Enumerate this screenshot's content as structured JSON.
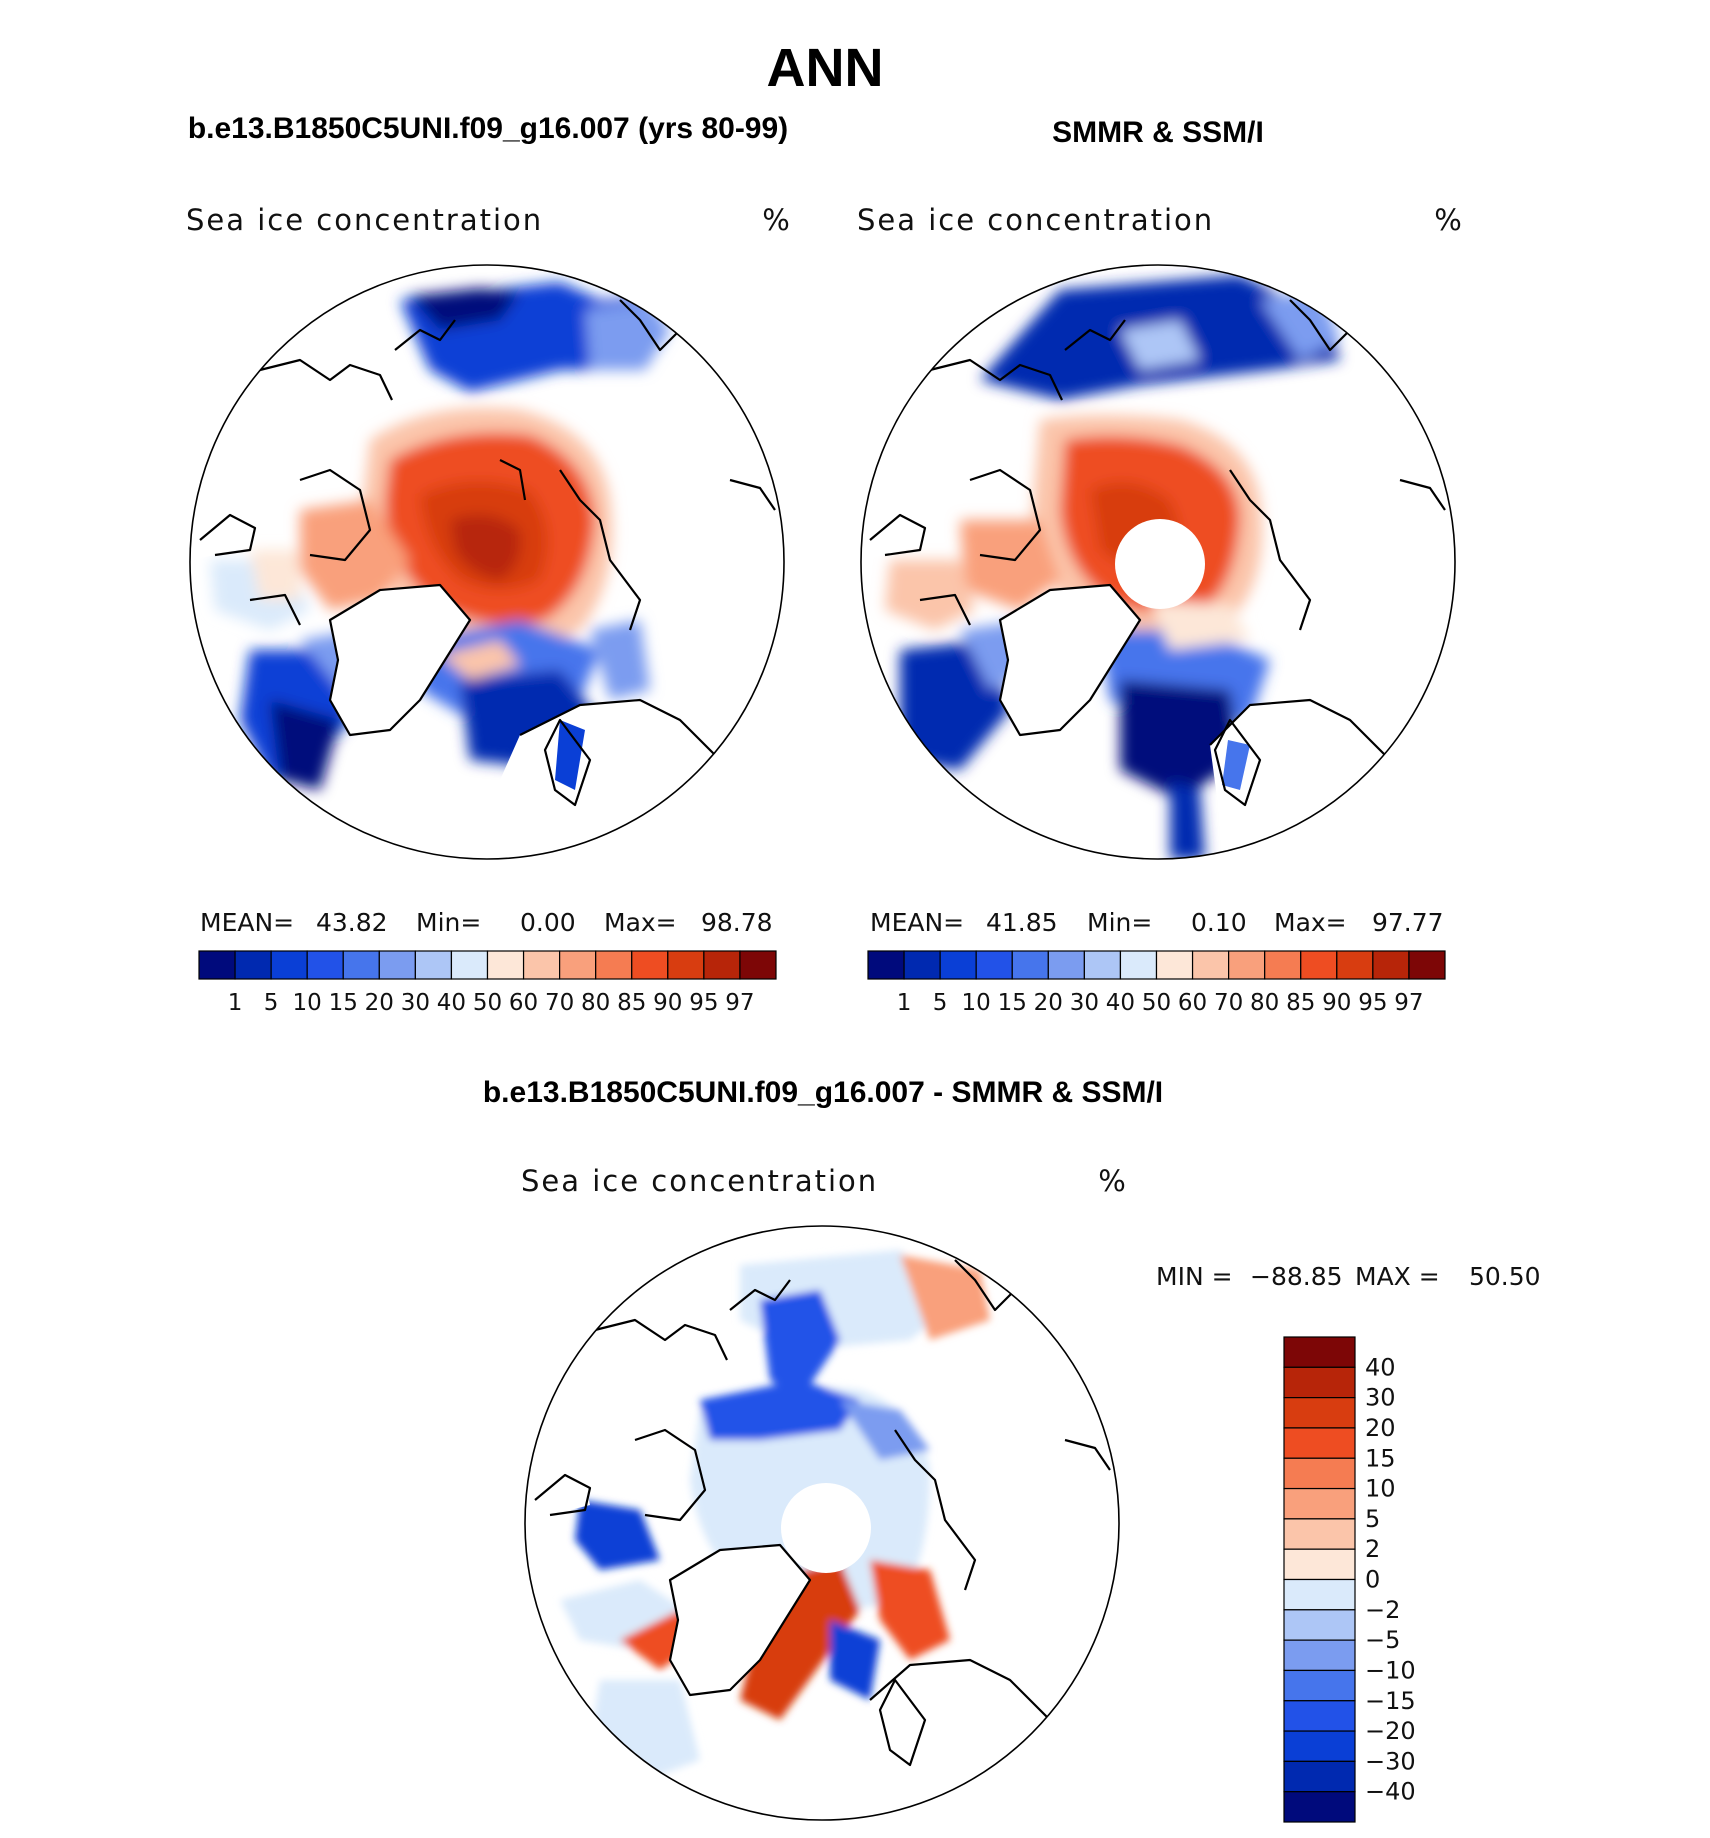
{
  "page_title": "ANN",
  "colors": {
    "scale_abs": [
      "#000a7c",
      "#0029b0",
      "#0a3fd6",
      "#2252e8",
      "#4675ec",
      "#7b9cf0",
      "#adc6f6",
      "#daeafb",
      "#fde7d8",
      "#fbc5aa",
      "#f9a07c",
      "#f57c52",
      "#ee4d22",
      "#d83d10",
      "#b72509",
      "#7d0606"
    ],
    "scale_diff": [
      "#000a7c",
      "#0029b0",
      "#0a3fd6",
      "#2252e8",
      "#4675ec",
      "#7b9cf0",
      "#adc6f6",
      "#daeafb",
      "#fde7d8",
      "#fbc5aa",
      "#f9a07c",
      "#f57c52",
      "#ee4d22",
      "#d83d10",
      "#b72509",
      "#7d0606"
    ]
  },
  "panels": [
    {
      "heading": "b.e13.B1850C5UNI.f09_g16.007 (yrs 80-99)",
      "variable": "Sea ice concentration",
      "units": "%",
      "stats": {
        "mean_label": "MEAN=",
        "mean": "43.82",
        "min_label": "Min=",
        "min": "0.00",
        "max_label": "Max=",
        "max": "98.78"
      },
      "pole_hole": false
    },
    {
      "heading": "SMMR & SSM/I",
      "variable": "Sea ice concentration",
      "units": "%",
      "stats": {
        "mean_label": "MEAN=",
        "mean": "41.85",
        "min_label": "Min=",
        "min": "0.10",
        "max_label": "Max=",
        "max": "97.77"
      },
      "pole_hole": true
    }
  ],
  "difference_panel": {
    "heading": "b.e13.B1850C5UNI.f09_g16.007 - SMMR & SSM/I",
    "variable": "Sea ice concentration",
    "units": "%",
    "min_label": "MIN =",
    "min": "−88.85",
    "max_label": "MAX =",
    "max": "50.50",
    "pole_hole": true
  },
  "chart_data": [
    {
      "type": "heatmap",
      "title": "b.e13.B1850C5UNI.f09_g16.007 (yrs 80-99)",
      "subtitle": "Sea ice concentration (%)",
      "projection": "north polar stereographic",
      "legend_levels": [
        "1",
        "5",
        "10",
        "15",
        "20",
        "30",
        "40",
        "50",
        "60",
        "70",
        "80",
        "85",
        "90",
        "95",
        "97"
      ],
      "mean": 43.82,
      "min": 0.0,
      "max": 98.78
    },
    {
      "type": "heatmap",
      "title": "SMMR & SSM/I",
      "subtitle": "Sea ice concentration (%)",
      "projection": "north polar stereographic",
      "legend_levels": [
        "1",
        "5",
        "10",
        "15",
        "20",
        "30",
        "40",
        "50",
        "60",
        "70",
        "80",
        "85",
        "90",
        "95",
        "97"
      ],
      "mean": 41.85,
      "min": 0.1,
      "max": 97.77
    },
    {
      "type": "heatmap",
      "title": "b.e13.B1850C5UNI.f09_g16.007 - SMMR & SSM/I",
      "subtitle": "Sea ice concentration (%)",
      "projection": "north polar stereographic",
      "legend_levels": [
        "40",
        "30",
        "20",
        "15",
        "10",
        "5",
        "2",
        "0",
        "−2",
        "−5",
        "−10",
        "−15",
        "−20",
        "−30",
        "−40"
      ],
      "min": -88.85,
      "max": 50.5
    }
  ]
}
